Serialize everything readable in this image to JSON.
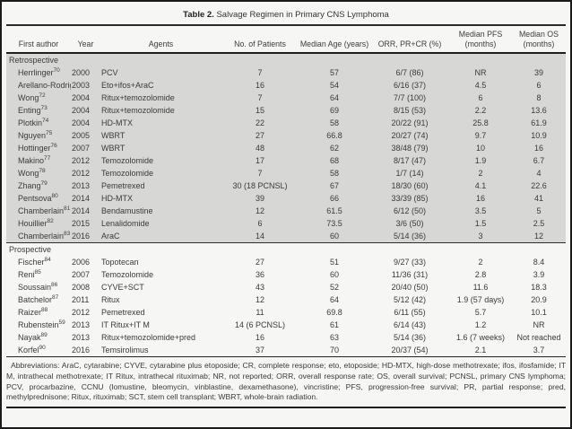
{
  "colors": {
    "section_shade": "#d7d7d6",
    "rule": "#1f1f1f",
    "text": "#3a3a3a",
    "page_background": "#f6f6f4"
  },
  "title": {
    "bold": "Table 2.",
    "rest": " Salvage Regimen in Primary CNS Lymphoma"
  },
  "table": {
    "columns": [
      "First author",
      "Year",
      "Agents",
      "No. of Patients",
      "Median Age (years)",
      "ORR, PR+CR (%)",
      "Median PFS\n(months)",
      "Median OS\n(months)"
    ],
    "sections": [
      {
        "label": "Retrospective",
        "shaded": true,
        "rows": [
          {
            "author": "Herrlinger",
            "ref": "70",
            "year": "2000",
            "agents": "PCV",
            "patients": "7",
            "age": "57",
            "orr": "6/7 (86)",
            "pfs": "NR",
            "os": "39"
          },
          {
            "author": "Arellano-Rodrigo",
            "ref": "71",
            "year": "2003",
            "agents": "Eto+ifos+AraC",
            "patients": "16",
            "age": "54",
            "orr": "6/16 (37)",
            "pfs": "4.5",
            "os": "6"
          },
          {
            "author": "Wong",
            "ref": "72",
            "year": "2004",
            "agents": "Ritux+temozolomide",
            "patients": "7",
            "age": "64",
            "orr": "7/7 (100)",
            "pfs": "6",
            "os": "8"
          },
          {
            "author": "Enting",
            "ref": "73",
            "year": "2004",
            "agents": "Ritux+temozolomide",
            "patients": "15",
            "age": "69",
            "orr": "8/15 (53)",
            "pfs": "2.2",
            "os": "13.6"
          },
          {
            "author": "Plotkin",
            "ref": "74",
            "year": "2004",
            "agents": "HD-MTX",
            "patients": "22",
            "age": "58",
            "orr": "20/22 (91)",
            "pfs": "25.8",
            "os": "61.9"
          },
          {
            "author": "Nguyen",
            "ref": "75",
            "year": "2005",
            "agents": "WBRT",
            "patients": "27",
            "age": "66.8",
            "orr": "20/27 (74)",
            "pfs": "9.7",
            "os": "10.9"
          },
          {
            "author": "Hottinger",
            "ref": "76",
            "year": "2007",
            "agents": "WBRT",
            "patients": "48",
            "age": "62",
            "orr": "38/48 (79)",
            "pfs": "10",
            "os": "16"
          },
          {
            "author": "Makino",
            "ref": "77",
            "year": "2012",
            "agents": "Temozolomide",
            "patients": "17",
            "age": "68",
            "orr": "8/17 (47)",
            "pfs": "1.9",
            "os": "6.7"
          },
          {
            "author": "Wong",
            "ref": "78",
            "year": "2012",
            "agents": "Temozolomide",
            "patients": "7",
            "age": "58",
            "orr": "1/7 (14)",
            "pfs": "2",
            "os": "4"
          },
          {
            "author": "Zhang",
            "ref": "79",
            "year": "2013",
            "agents": "Pemetrexed",
            "patients": "30 (18 PCNSL)",
            "age": "67",
            "orr": "18/30 (60)",
            "pfs": "4.1",
            "os": "22.6"
          },
          {
            "author": "Pentsova",
            "ref": "80",
            "year": "2014",
            "agents": "HD-MTX",
            "patients": "39",
            "age": "66",
            "orr": "33/39 (85)",
            "pfs": "16",
            "os": "41"
          },
          {
            "author": "Chamberlain",
            "ref": "81",
            "year": "2014",
            "agents": "Bendamustine",
            "patients": "12",
            "age": "61.5",
            "orr": "6/12 (50)",
            "pfs": "3.5",
            "os": "5"
          },
          {
            "author": "Houillier",
            "ref": "82",
            "year": "2015",
            "agents": "Lenalidomide",
            "patients": "6",
            "age": "73.5",
            "orr": "3/6 (50)",
            "pfs": "1.5",
            "os": "2.5"
          },
          {
            "author": "Chamberlain",
            "ref": "83",
            "year": "2016",
            "agents": "AraC",
            "patients": "14",
            "age": "60",
            "orr": "5/14 (36)",
            "pfs": "3",
            "os": "12"
          }
        ]
      },
      {
        "label": "Prospective",
        "shaded": false,
        "rows": [
          {
            "author": "Fischer",
            "ref": "84",
            "year": "2006",
            "agents": "Topotecan",
            "patients": "27",
            "age": "51",
            "orr": "9/27 (33)",
            "pfs": "2",
            "os": "8.4"
          },
          {
            "author": "Reni",
            "ref": "85",
            "year": "2007",
            "agents": "Temozolomide",
            "patients": "36",
            "age": "60",
            "orr": "11/36 (31)",
            "pfs": "2.8",
            "os": "3.9"
          },
          {
            "author": "Soussain",
            "ref": "86",
            "year": "2008",
            "agents": "CYVE+SCT",
            "patients": "43",
            "age": "52",
            "orr": "20/40 (50)",
            "pfs": "11.6",
            "os": "18.3"
          },
          {
            "author": "Batchelor",
            "ref": "87",
            "year": "2011",
            "agents": "Ritux",
            "patients": "12",
            "age": "64",
            "orr": "5/12 (42)",
            "pfs": "1.9 (57 days)",
            "os": "20.9"
          },
          {
            "author": "Raizer",
            "ref": "88",
            "year": "2012",
            "agents": "Pemetrexed",
            "patients": "11",
            "age": "69.8",
            "orr": "6/11 (55)",
            "pfs": "5.7",
            "os": "10.1"
          },
          {
            "author": "Rubenstein",
            "ref": "59",
            "year": "2013",
            "agents": "IT Ritux+IT M",
            "patients": "14 (6 PCNSL)",
            "age": "61",
            "orr": "6/14 (43)",
            "pfs": "1.2",
            "os": "NR"
          },
          {
            "author": "Nayak",
            "ref": "89",
            "year": "2013",
            "agents": "Ritux+temozolomide+pred",
            "patients": "16",
            "age": "63",
            "orr": "5/14 (36)",
            "pfs": "1.6 (7 weeks)",
            "os": "Not reached"
          },
          {
            "author": "Korfel",
            "ref": "90",
            "year": "2016",
            "agents": "Temsirolimus",
            "patients": "37",
            "age": "70",
            "orr": "20/37 (54)",
            "pfs": "2.1",
            "os": "3.7"
          }
        ]
      }
    ]
  },
  "footnote": "Abbreviations: AraC, cytarabine; CYVE, cytarabine plus etoposide; CR, complete response; eto, etoposide; HD-MTX, high-dose methotrexate; ifos, ifosfamide; IT M, intrathecal methotrexate; IT Ritux, intrathecal rituximab; NR, not reported; ORR, overall response rate; OS, overall survival; PCNSL, primary CNS lymphoma; PCV, procarbazine, CCNU (lomustine, bleomycin, vinblastine, dexamethasone), vincristine; PFS, progression-free survival; PR, partial response; pred, methylprednisone; Ritux, rituximab; SCT, stem cell transplant; WBRT, whole-brain radiation."
}
